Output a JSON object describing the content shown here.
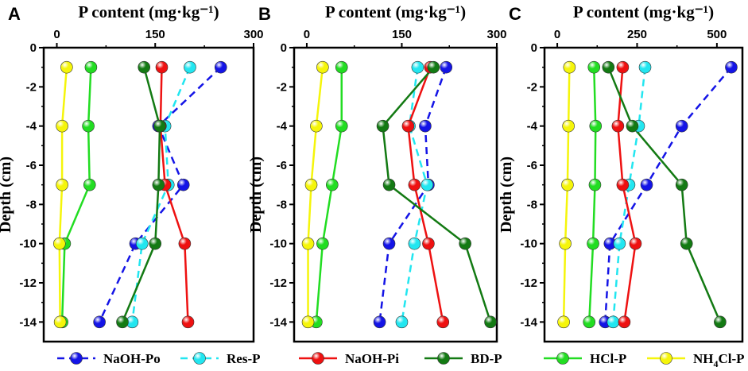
{
  "chart_data": [
    {
      "panel": "A",
      "type": "line",
      "title": "P content (mg·kg⁻¹)",
      "xlabel": "P content (mg·kg⁻¹)",
      "ylabel": "Depth (cm)",
      "xlim": [
        -20,
        300
      ],
      "ylim": [
        -15,
        0
      ],
      "xticks": [
        0,
        150,
        300
      ],
      "yticks": [
        0,
        -2,
        -4,
        -6,
        -8,
        -10,
        -12,
        -14
      ],
      "y": [
        -1,
        -4,
        -7,
        -10,
        -14
      ],
      "series": [
        {
          "name": "NaOH-Po",
          "values": [
            250,
            155,
            193,
            120,
            65
          ]
        },
        {
          "name": "Res-P",
          "values": [
            203,
            165,
            170,
            130,
            115
          ]
        },
        {
          "name": "NaOH-Pi",
          "values": [
            160,
            158,
            165,
            195,
            200
          ]
        },
        {
          "name": "BD-P",
          "values": [
            133,
            157,
            155,
            150,
            100
          ]
        },
        {
          "name": "HCl-P",
          "values": [
            52,
            48,
            50,
            12,
            8
          ]
        },
        {
          "name": "NH4Cl-P",
          "values": [
            15,
            8,
            8,
            4,
            5
          ]
        }
      ]
    },
    {
      "panel": "B",
      "type": "line",
      "title": "P content (mg·kg⁻¹)",
      "xlabel": "P content (mg·kg⁻¹)",
      "ylabel": "Depth (cm)",
      "xlim": [
        -20,
        300
      ],
      "ylim": [
        -15,
        0
      ],
      "xticks": [
        0,
        150,
        300
      ],
      "yticks": [
        0,
        -2,
        -4,
        -6,
        -8,
        -10,
        -12,
        -14
      ],
      "y": [
        -1,
        -4,
        -7,
        -10,
        -14
      ],
      "series": [
        {
          "name": "NaOH-Po",
          "values": [
            220,
            187,
            192,
            130,
            115
          ]
        },
        {
          "name": "Res-P",
          "values": [
            175,
            162,
            190,
            170,
            150
          ]
        },
        {
          "name": "NaOH-Pi",
          "values": [
            195,
            160,
            170,
            192,
            215
          ]
        },
        {
          "name": "BD-P",
          "values": [
            200,
            120,
            130,
            250,
            290
          ]
        },
        {
          "name": "HCl-P",
          "values": [
            55,
            55,
            40,
            25,
            15
          ]
        },
        {
          "name": "NH4Cl-P",
          "values": [
            25,
            15,
            7,
            2,
            2
          ]
        }
      ]
    },
    {
      "panel": "C",
      "type": "line",
      "title": "P content (mg·kg⁻¹)",
      "xlabel": "P content (mg·kg⁻¹)",
      "ylabel": "Depth (cm)",
      "xlim": [
        -40,
        580
      ],
      "ylim": [
        -15,
        0
      ],
      "xticks": [
        0,
        250,
        500
      ],
      "yticks": [
        0,
        -2,
        -4,
        -6,
        -8,
        -10,
        -12,
        -14
      ],
      "y": [
        -1,
        -4,
        -7,
        -10,
        -14
      ],
      "series": [
        {
          "name": "NaOH-Po",
          "values": [
            545,
            390,
            280,
            165,
            150
          ]
        },
        {
          "name": "Res-P",
          "values": [
            275,
            255,
            225,
            195,
            175
          ]
        },
        {
          "name": "NaOH-Pi",
          "values": [
            205,
            190,
            205,
            245,
            210
          ]
        },
        {
          "name": "BD-P",
          "values": [
            160,
            235,
            390,
            405,
            510
          ]
        },
        {
          "name": "HCl-P",
          "values": [
            115,
            120,
            118,
            112,
            100
          ]
        },
        {
          "name": "NH4Cl-P",
          "values": [
            38,
            35,
            32,
            25,
            20
          ]
        }
      ]
    }
  ],
  "legend": [
    {
      "name": "NaOH-Po",
      "base": "NaOH-Po",
      "sub": "",
      "rest": "",
      "color": "#1414e6",
      "dashed": true
    },
    {
      "name": "Res-P",
      "base": "Res-P",
      "sub": "",
      "rest": "",
      "color": "#22e6f0",
      "dashed": true
    },
    {
      "name": "NaOH-Pi",
      "base": "NaOH-Pi",
      "sub": "",
      "rest": "",
      "color": "#ee1111",
      "dashed": false
    },
    {
      "name": "BD-P",
      "base": "BD-P",
      "sub": "",
      "rest": "",
      "color": "#137a13",
      "dashed": false
    },
    {
      "name": "HCl-P",
      "base": "HCl-P",
      "sub": "",
      "rest": "",
      "color": "#22dd22",
      "dashed": false
    },
    {
      "name": "NH4Cl-P",
      "base": "NH",
      "sub": "4",
      "rest": "Cl-P",
      "color": "#f5f50a",
      "dashed": false
    }
  ],
  "colors": {
    "NaOH-Po": "#1414e6",
    "Res-P": "#22e6f0",
    "NaOH-Pi": "#ee1111",
    "BD-P": "#137a13",
    "HCl-P": "#22dd22",
    "NH4Cl-P": "#f5f50a"
  },
  "dashed": [
    "NaOH-Po",
    "Res-P"
  ]
}
